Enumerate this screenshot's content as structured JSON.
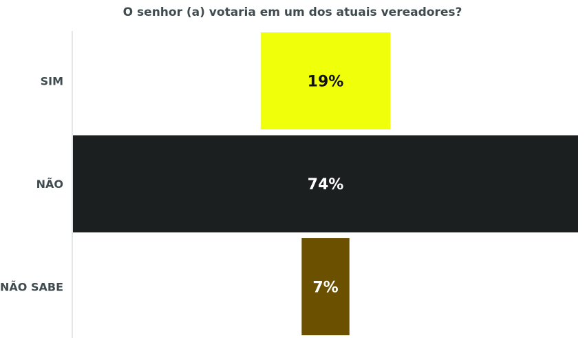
{
  "chart_data": {
    "type": "bar",
    "orientation": "horizontal",
    "layout": "centered-funnel",
    "title": "O senhor (a) votaria em um dos atuais vereadores?",
    "categories": [
      "SIM",
      "NÃO",
      "NÃO SABE"
    ],
    "values": [
      19,
      74,
      7
    ],
    "data_labels": [
      "19%",
      "74%",
      "7%"
    ],
    "unit": "%",
    "colors": [
      "#f0ff0a",
      "#1c1f20",
      "#6b5000"
    ],
    "label_colors": [
      "#111111",
      "#ffffff",
      "#ffffff"
    ],
    "category_label_color": "#3f4b4e",
    "xlim": [
      0,
      74
    ],
    "grid": false,
    "legend": "none"
  }
}
